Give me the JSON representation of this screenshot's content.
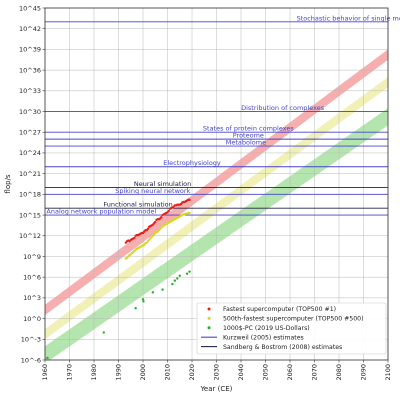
{
  "chart_data": {
    "type": "scatter",
    "title": "",
    "xlabel": "Year (CE)",
    "ylabel": "flop/s",
    "xlim": [
      1960,
      2100
    ],
    "ylim": [
      -6,
      45
    ],
    "y_scale": "log10",
    "grid": true,
    "x_ticks": [
      1960,
      1970,
      1980,
      1990,
      2000,
      2010,
      2020,
      2030,
      2040,
      2050,
      2060,
      2070,
      2080,
      2090,
      2100
    ],
    "y_ticks": [
      {
        "v": -6,
        "label": "10^-6"
      },
      {
        "v": -3,
        "label": "10^-3"
      },
      {
        "v": 0,
        "label": "10^0"
      },
      {
        "v": 3,
        "label": "10^3"
      },
      {
        "v": 6,
        "label": "10^6"
      },
      {
        "v": 9,
        "label": "10^9"
      },
      {
        "v": 12,
        "label": "10^12"
      },
      {
        "v": 15,
        "label": "10^15"
      },
      {
        "v": 18,
        "label": "10^18"
      },
      {
        "v": 21,
        "label": "10^21"
      },
      {
        "v": 24,
        "label": "10^24"
      },
      {
        "v": 27,
        "label": "10^27"
      },
      {
        "v": 30,
        "label": "10^30"
      },
      {
        "v": 33,
        "label": "10^33"
      },
      {
        "v": 36,
        "label": "10^36"
      },
      {
        "v": 39,
        "label": "10^39"
      },
      {
        "v": 42,
        "label": "10^42"
      },
      {
        "v": 45,
        "label": "10^45"
      }
    ],
    "bands": [
      {
        "name": "Fastest supercomputer trend",
        "color": "#f4a0a0",
        "x": [
          1960,
          2100
        ],
        "lower": [
          0.5,
          37.5
        ],
        "upper": [
          2.0,
          39.0
        ]
      },
      {
        "name": "500th-fastest supercomputer trend",
        "color": "#eeeeaa",
        "x": [
          1960,
          2100
        ],
        "lower": [
          -3.0,
          33.5
        ],
        "upper": [
          -1.5,
          35.0
        ]
      },
      {
        "name": "1000$-PC trend",
        "color": "#a8e0a0",
        "x": [
          1960,
          2100
        ],
        "lower": [
          -6.5,
          28.0
        ],
        "upper": [
          -4.0,
          30.5
        ]
      }
    ],
    "series": [
      {
        "name": "Fastest supercomputer (TOP500 #1)",
        "color": "#e8201a",
        "points": [
          [
            1993,
            11.0
          ],
          [
            1993.5,
            11.2
          ],
          [
            1994,
            11.3
          ],
          [
            1994.5,
            11.2
          ],
          [
            1995,
            11.4
          ],
          [
            1995.5,
            11.5
          ],
          [
            1996,
            11.6
          ],
          [
            1996.5,
            11.7
          ],
          [
            1997,
            12.0
          ],
          [
            1997.5,
            12.1
          ],
          [
            1998,
            12.1
          ],
          [
            1998.5,
            12.2
          ],
          [
            1999,
            12.3
          ],
          [
            1999.5,
            12.4
          ],
          [
            2000,
            12.4
          ],
          [
            2000.5,
            12.6
          ],
          [
            2001,
            12.8
          ],
          [
            2001.5,
            12.8
          ],
          [
            2002,
            13.0
          ],
          [
            2002.5,
            13.3
          ],
          [
            2003,
            13.4
          ],
          [
            2003.5,
            13.5
          ],
          [
            2004,
            13.6
          ],
          [
            2004.5,
            13.8
          ],
          [
            2005,
            14.0
          ],
          [
            2005.5,
            14.3
          ],
          [
            2006,
            14.4
          ],
          [
            2006.5,
            14.4
          ],
          [
            2007,
            14.5
          ],
          [
            2007.5,
            14.7
          ],
          [
            2008,
            15.0
          ],
          [
            2008.5,
            15.1
          ],
          [
            2009,
            15.2
          ],
          [
            2009.5,
            15.3
          ],
          [
            2010,
            15.4
          ],
          [
            2010.5,
            15.6
          ],
          [
            2011,
            15.9
          ],
          [
            2011.5,
            16.0
          ],
          [
            2012,
            16.1
          ],
          [
            2012.5,
            16.2
          ],
          [
            2013,
            16.4
          ],
          [
            2013.5,
            16.4
          ],
          [
            2014,
            16.5
          ],
          [
            2014.5,
            16.5
          ],
          [
            2015,
            16.5
          ],
          [
            2015.5,
            16.6
          ],
          [
            2016,
            16.8
          ],
          [
            2016.5,
            16.9
          ],
          [
            2017,
            16.9
          ],
          [
            2017.5,
            17.0
          ],
          [
            2018,
            17.1
          ],
          [
            2018.5,
            17.2
          ],
          [
            2019,
            17.2
          ]
        ]
      },
      {
        "name": "500th-fastest supercomputer (TOP500 #500)",
        "color": "#d8d820",
        "points": [
          [
            1993,
            8.7
          ],
          [
            1993.5,
            8.8
          ],
          [
            1994,
            9.0
          ],
          [
            1994.5,
            9.2
          ],
          [
            1995,
            9.3
          ],
          [
            1995.5,
            9.5
          ],
          [
            1996,
            9.6
          ],
          [
            1996.5,
            9.8
          ],
          [
            1997,
            10.0
          ],
          [
            1997.5,
            10.1
          ],
          [
            1998,
            10.2
          ],
          [
            1998.5,
            10.3
          ],
          [
            1999,
            10.4
          ],
          [
            1999.5,
            10.5
          ],
          [
            2000,
            10.6
          ],
          [
            2000.5,
            10.7
          ],
          [
            2001,
            10.9
          ],
          [
            2001.5,
            11.0
          ],
          [
            2002,
            11.2
          ],
          [
            2002.5,
            11.4
          ],
          [
            2003,
            11.6
          ],
          [
            2003.5,
            11.8
          ],
          [
            2004,
            12.0
          ],
          [
            2004.5,
            12.2
          ],
          [
            2005,
            12.4
          ],
          [
            2005.5,
            12.5
          ],
          [
            2006,
            12.6
          ],
          [
            2006.5,
            12.8
          ],
          [
            2007,
            13.0
          ],
          [
            2007.5,
            13.2
          ],
          [
            2008,
            13.4
          ],
          [
            2008.5,
            13.5
          ],
          [
            2009,
            13.6
          ],
          [
            2009.5,
            13.7
          ],
          [
            2010,
            13.8
          ],
          [
            2010.5,
            13.9
          ],
          [
            2011,
            14.0
          ],
          [
            2011.5,
            14.1
          ],
          [
            2012,
            14.2
          ],
          [
            2012.5,
            14.3
          ],
          [
            2013,
            14.4
          ],
          [
            2013.5,
            14.5
          ],
          [
            2014,
            14.6
          ],
          [
            2014.5,
            14.7
          ],
          [
            2015,
            14.8
          ],
          [
            2015.5,
            14.9
          ],
          [
            2016,
            15.0
          ],
          [
            2016.5,
            15.1
          ],
          [
            2017,
            15.1
          ],
          [
            2017.5,
            15.2
          ],
          [
            2018,
            15.2
          ],
          [
            2018.5,
            15.3
          ],
          [
            2019,
            15.3
          ]
        ]
      },
      {
        "name": "1000$-PC (2019 US-Dollars)",
        "color": "#22b022",
        "points": [
          [
            1961,
            -5.7
          ],
          [
            1984,
            -2.0
          ],
          [
            1997,
            1.5
          ],
          [
            2000,
            2.8
          ],
          [
            2000.2,
            2.5
          ],
          [
            2004,
            3.8
          ],
          [
            2008,
            4.2
          ],
          [
            2012,
            5.0
          ],
          [
            2013,
            5.5
          ],
          [
            2014,
            5.8
          ],
          [
            2015,
            6.2
          ],
          [
            2018,
            6.5
          ],
          [
            2019,
            6.8
          ]
        ]
      }
    ],
    "annotations": [
      {
        "label": "Stochastic behavior of single molecules",
        "y": 43.0,
        "color": "#4444cc",
        "label_x": 2089,
        "source": "kurzweil"
      },
      {
        "label": "Distribution of complexes",
        "y": 30.0,
        "color": "#4444cc",
        "label_x": 2057,
        "source": "kurzweil"
      },
      {
        "label": "States of protein complexes",
        "y": 27.0,
        "color": "#4444cc",
        "label_x": 2043,
        "source": "kurzweil"
      },
      {
        "label": "Proteome",
        "y": 26.0,
        "color": "#4444cc",
        "label_x": 2043,
        "source": "kurzweil"
      },
      {
        "label": "Metabolome",
        "y": 25.0,
        "color": "#4444cc",
        "label_x": 2042,
        "source": "kurzweil"
      },
      {
        "label": "Electrophysiology",
        "y": 22.0,
        "color": "#4444cc",
        "label_x": 2020,
        "source": "kurzweil"
      },
      {
        "label": "Neural simulation",
        "y": 19.0,
        "color": "#222244",
        "label_x": 2008,
        "source": "sandberg"
      },
      {
        "label": "Spiking neural network",
        "y": 18.0,
        "color": "#4444cc",
        "label_x": 2004,
        "source": "kurzweil"
      },
      {
        "label": "Functional simulation",
        "y": 16.0,
        "color": "#222244",
        "label_x": 1998,
        "source": "sandberg"
      },
      {
        "label": "Analog network population model",
        "y": 15.0,
        "color": "#4444cc",
        "label_x": 1983,
        "source": "kurzweil"
      }
    ],
    "legend": {
      "placement": "bottom-right",
      "entries": [
        {
          "label": "Fastest supercomputer (TOP500 #1)",
          "kind": "dot",
          "color": "#e8201a"
        },
        {
          "label": "500th-fastest supercomputer (TOP500 #500)",
          "kind": "dot",
          "color": "#d8d820"
        },
        {
          "label": "1000$-PC (2019 US-Dollars)",
          "kind": "dot",
          "color": "#22b022"
        },
        {
          "label": "Kurzweil (2005) estimates",
          "kind": "line",
          "color": "#4444cc"
        },
        {
          "label": "Sandberg & Bostrom (2008) estimates",
          "kind": "line",
          "color": "#222244"
        }
      ]
    }
  }
}
